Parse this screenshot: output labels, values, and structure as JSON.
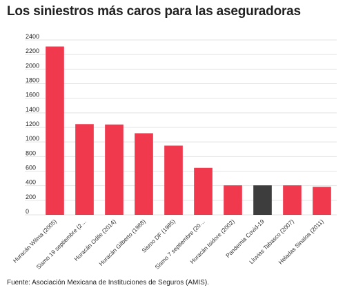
{
  "chart_data": {
    "type": "bar",
    "title": "Los siniestros más caros para las aseguradoras",
    "xlabel": "",
    "ylabel": "",
    "categories": [
      "Huracán Wilma (2005)",
      "Sismo 19 septiembre (2…",
      "Huracán Odile (2014)",
      "Huracán Gilberto (1988)",
      "Sismo DF (1985)",
      "Sismo 7 septiembre (20…",
      "Huracán Isidore (2002)",
      "Pandemia Covid-19",
      "Lluvias Tabasco (2007)",
      "Heladas Sinaloa (2011)"
    ],
    "values": [
      2310,
      1245,
      1240,
      1120,
      950,
      645,
      405,
      405,
      405,
      385
    ],
    "highlight_index": 7,
    "ylim": [
      0,
      2400
    ],
    "yticks": [
      0,
      200,
      400,
      600,
      800,
      1000,
      1200,
      1400,
      1600,
      1800,
      2000,
      2200,
      2400
    ],
    "grid": true,
    "legend": "none",
    "colors": {
      "bar": "#f0394d",
      "highlight": "#3d3d3d",
      "grid": "#e3e3e3"
    }
  },
  "source": "Fuente: Asociación Mexicana de Instituciones de Seguros (AMIS)."
}
